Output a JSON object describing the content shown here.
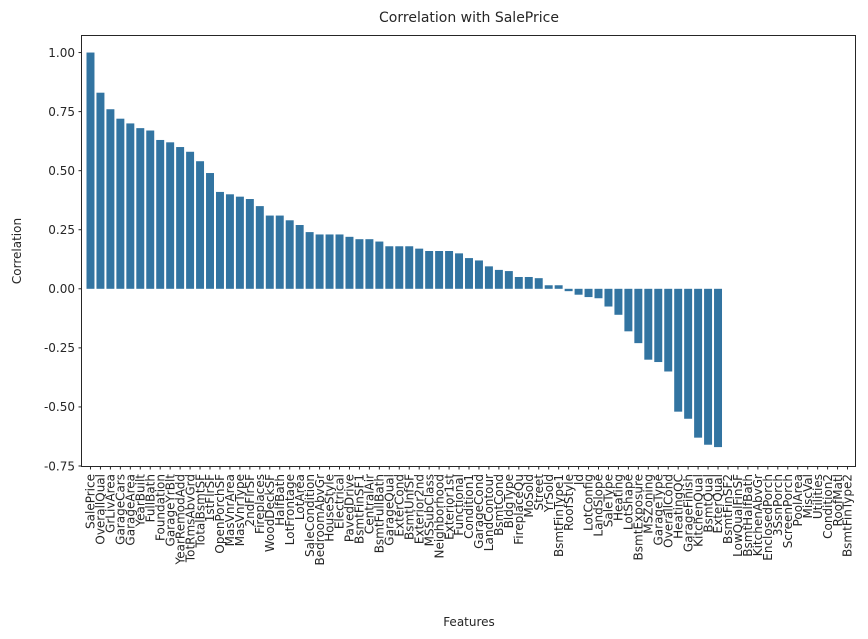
{
  "chart_data": {
    "type": "bar",
    "title": "Correlation with SalePrice",
    "xlabel": "Features",
    "ylabel": "Correlation",
    "ylim": [
      -0.75,
      1.07
    ],
    "yticks": [
      "-0.75",
      "-0.50",
      "-0.25",
      "0.00",
      "0.25",
      "0.50",
      "0.75",
      "1.00"
    ],
    "ytick_values": [
      -0.75,
      -0.5,
      -0.25,
      0.0,
      0.25,
      0.5,
      0.75,
      1.0
    ],
    "grid": false,
    "bar_color": "#3274a1",
    "categories": [
      "SalePrice",
      "OverallQual",
      "GrLivArea",
      "GarageCars",
      "GarageArea",
      "YearBuilt",
      "FullBath",
      "Foundation",
      "GarageYrBlt",
      "YearRemodAdd",
      "TotRmsAbvGrd",
      "TotalBsmtSF",
      "1stFlrSF",
      "OpenPorchSF",
      "MasVnrArea",
      "MasVnrType",
      "2ndFlrSF",
      "Fireplaces",
      "WoodDeckSF",
      "HalfBath",
      "LotFrontage",
      "LotArea",
      "SaleCondition",
      "BedroomAbvGr",
      "HouseStyle",
      "Electrical",
      "PavedDrive",
      "BsmtFinSF1",
      "CentralAir",
      "BsmtFullBath",
      "GarageQual",
      "ExterCond",
      "BsmtUnfSF",
      "Exterior2nd",
      "MSSubClass",
      "Neighborhood",
      "Exterior1st",
      "Functional",
      "Condition1",
      "GarageCond",
      "LandContour",
      "BsmtCond",
      "BldgType",
      "FireplaceQu",
      "MoSold",
      "Street",
      "YrSold",
      "BsmtFinType1",
      "RoofStyle",
      "Id",
      "LotConfig",
      "LandSlope",
      "SaleType",
      "Heating",
      "LotShape",
      "BsmtExposure",
      "MSZoning",
      "GarageType",
      "OverallCond",
      "HeatingQC",
      "GarageFinish",
      "KitchenQual",
      "BsmtQual",
      "ExterQual",
      "BsmtFinSF2",
      "LowQualFinSF",
      "BsmtHalfBath",
      "KitchenAbvGr",
      "EnclosedPorch",
      "3SsnPorch",
      "ScreenPorch",
      "PoolArea",
      "MiscVal",
      "Utilities",
      "Condition2",
      "RoofMatl",
      "BsmtFinType2"
    ],
    "values": [
      1.0,
      0.83,
      0.76,
      0.72,
      0.7,
      0.68,
      0.67,
      0.63,
      0.62,
      0.6,
      0.58,
      0.54,
      0.49,
      0.41,
      0.4,
      0.39,
      0.38,
      0.35,
      0.31,
      0.31,
      0.29,
      0.27,
      0.24,
      0.23,
      0.23,
      0.23,
      0.22,
      0.21,
      0.21,
      0.2,
      0.18,
      0.18,
      0.18,
      0.17,
      0.16,
      0.16,
      0.16,
      0.15,
      0.13,
      0.12,
      0.095,
      0.08,
      0.075,
      0.05,
      0.05,
      0.045,
      0.015,
      0.015,
      -0.01,
      -0.025,
      -0.035,
      -0.04,
      -0.075,
      -0.11,
      -0.18,
      -0.23,
      -0.3,
      -0.31,
      -0.35,
      -0.52,
      -0.55,
      -0.63,
      -0.66,
      -0.67,
      0,
      0,
      0,
      0,
      0,
      0,
      0,
      0,
      0,
      0,
      0,
      0,
      0
    ]
  }
}
